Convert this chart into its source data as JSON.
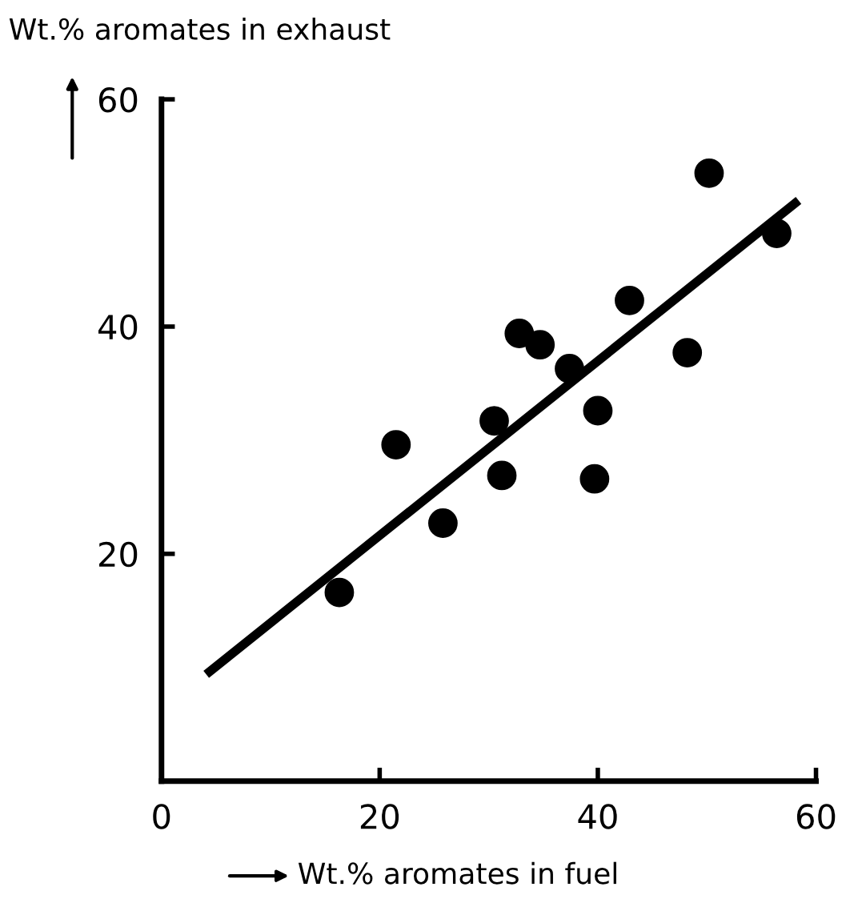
{
  "chart_data": {
    "type": "scatter",
    "xlabel": "Wt.% aromates in fuel",
    "ylabel": "Wt.% aromates in exhaust",
    "xlim": [
      0,
      60
    ],
    "ylim": [
      0,
      60
    ],
    "xticks": [
      0,
      20,
      40,
      60
    ],
    "yticks": [
      20,
      40,
      60
    ],
    "grid": false,
    "marker": "circle",
    "series": [
      {
        "color": "#000000",
        "x": [
          16.3,
          21.5,
          25.8,
          30.5,
          31.2,
          32.8,
          34.7,
          37.4,
          39.7,
          40.0,
          42.9,
          48.2,
          50.2,
          56.4
        ],
        "values": [
          16.6,
          29.6,
          22.7,
          31.7,
          26.9,
          39.4,
          38.4,
          36.3,
          26.6,
          32.6,
          42.3,
          37.7,
          53.5,
          48.2
        ]
      },
      {
        "type": "line",
        "color": "#000000",
        "marker": "none",
        "x": [
          4.1,
          58.4
        ],
        "values": [
          9.4,
          51.1
        ]
      }
    ]
  }
}
